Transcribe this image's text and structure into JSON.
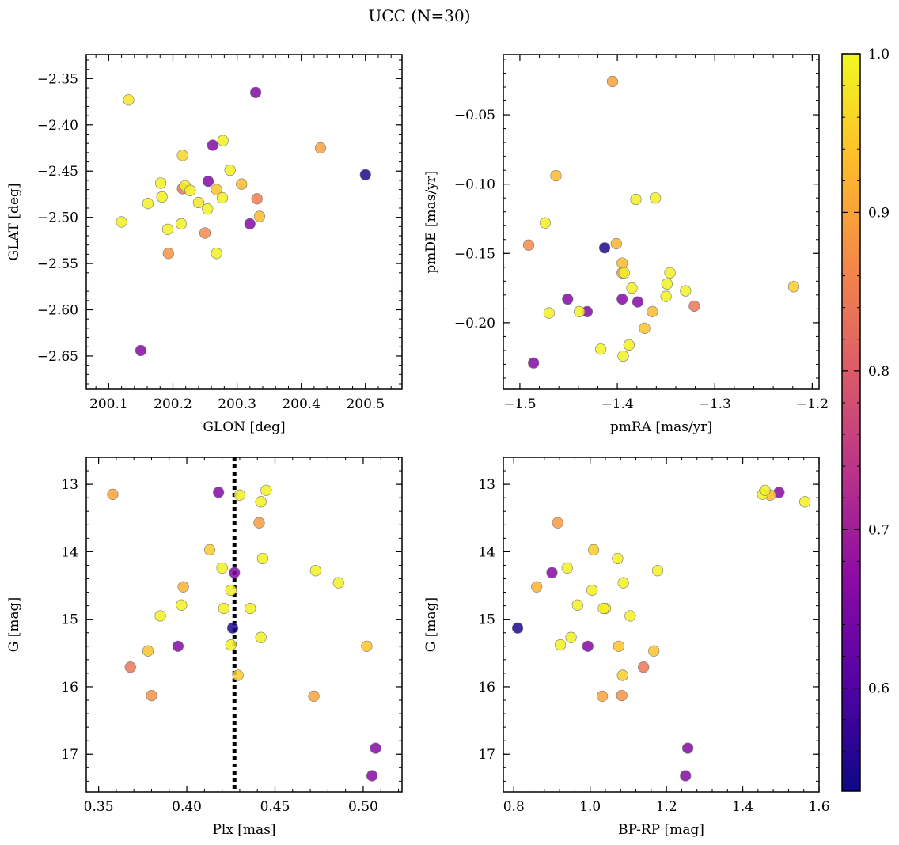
{
  "figure": {
    "title": "UCC (N=30)"
  },
  "chart_data": [
    {
      "type": "scatter",
      "panel": "top-left",
      "xlabel": "GLON [deg]",
      "ylabel": "GLAT [deg]",
      "xlim": [
        200.065,
        200.557
      ],
      "ylim": [
        -2.686,
        -2.324
      ],
      "y_inverted": false,
      "xticks": [
        200.1,
        200.2,
        200.3,
        200.4,
        200.5
      ],
      "xtick_labels": [
        "200.1",
        "200.2",
        "200.3",
        "200.4",
        "200.5"
      ],
      "yticks": [
        -2.65,
        -2.6,
        -2.55,
        -2.5,
        -2.45,
        -2.4,
        -2.35
      ],
      "ytick_labels": [
        "−2.65",
        "−2.60",
        "−2.55",
        "−2.50",
        "−2.45",
        "−2.40",
        "−2.35"
      ],
      "points": [
        {
          "x": 200.131,
          "y": -2.373,
          "c": 0.98
        },
        {
          "x": 200.329,
          "y": -2.365,
          "c": 0.66
        },
        {
          "x": 200.262,
          "y": -2.422,
          "c": 0.66
        },
        {
          "x": 200.278,
          "y": -2.417,
          "c": 0.99
        },
        {
          "x": 200.43,
          "y": -2.425,
          "c": 0.9
        },
        {
          "x": 200.215,
          "y": -2.433,
          "c": 0.96
        },
        {
          "x": 200.289,
          "y": -2.449,
          "c": 0.99
        },
        {
          "x": 200.5,
          "y": -2.454,
          "c": 0.55
        },
        {
          "x": 200.255,
          "y": -2.461,
          "c": 0.66
        },
        {
          "x": 200.307,
          "y": -2.464,
          "c": 0.93
        },
        {
          "x": 200.181,
          "y": -2.463,
          "c": 0.99
        },
        {
          "x": 200.215,
          "y": -2.469,
          "c": 0.84
        },
        {
          "x": 200.219,
          "y": -2.466,
          "c": 0.99
        },
        {
          "x": 200.227,
          "y": -2.471,
          "c": 0.99
        },
        {
          "x": 200.268,
          "y": -2.47,
          "c": 0.94
        },
        {
          "x": 200.331,
          "y": -2.48,
          "c": 0.85
        },
        {
          "x": 200.183,
          "y": -2.478,
          "c": 0.99
        },
        {
          "x": 200.277,
          "y": -2.479,
          "c": 0.99
        },
        {
          "x": 200.24,
          "y": -2.484,
          "c": 0.98
        },
        {
          "x": 200.161,
          "y": -2.485,
          "c": 0.99
        },
        {
          "x": 200.254,
          "y": -2.491,
          "c": 0.99
        },
        {
          "x": 200.335,
          "y": -2.499,
          "c": 0.93
        },
        {
          "x": 200.12,
          "y": -2.505,
          "c": 0.99
        },
        {
          "x": 200.213,
          "y": -2.507,
          "c": 0.99
        },
        {
          "x": 200.32,
          "y": -2.507,
          "c": 0.66
        },
        {
          "x": 200.192,
          "y": -2.513,
          "c": 0.99
        },
        {
          "x": 200.25,
          "y": -2.517,
          "c": 0.87
        },
        {
          "x": 200.193,
          "y": -2.539,
          "c": 0.88
        },
        {
          "x": 200.268,
          "y": -2.539,
          "c": 0.99
        },
        {
          "x": 200.15,
          "y": -2.644,
          "c": 0.66
        }
      ]
    },
    {
      "type": "scatter",
      "panel": "top-right",
      "xlabel": "pmRA [mas/yr]",
      "ylabel": "pmDE [mas/yr]",
      "xlim": [
        -1.517,
        -1.193
      ],
      "ylim": [
        -0.248,
        -0.0066
      ],
      "y_inverted": false,
      "xticks": [
        -1.5,
        -1.4,
        -1.3,
        -1.2
      ],
      "xtick_labels": [
        "−1.5",
        "−1.4",
        "−1.3",
        "−1.2"
      ],
      "yticks": [
        -0.2,
        -0.15,
        -0.1,
        -0.05
      ],
      "ytick_labels": [
        "−0.20",
        "−0.15",
        "−0.10",
        "−0.05"
      ],
      "points": [
        {
          "x": -1.405,
          "y": -0.026,
          "c": 0.9
        },
        {
          "x": -1.463,
          "y": -0.094,
          "c": 0.93
        },
        {
          "x": -1.361,
          "y": -0.11,
          "c": 0.99
        },
        {
          "x": -1.381,
          "y": -0.111,
          "c": 0.99
        },
        {
          "x": -1.474,
          "y": -0.128,
          "c": 0.99
        },
        {
          "x": -1.491,
          "y": -0.144,
          "c": 0.87
        },
        {
          "x": -1.401,
          "y": -0.143,
          "c": 0.92
        },
        {
          "x": -1.413,
          "y": -0.146,
          "c": 0.55
        },
        {
          "x": -1.395,
          "y": -0.157,
          "c": 0.93
        },
        {
          "x": -1.395,
          "y": -0.164,
          "c": 0.9
        },
        {
          "x": -1.393,
          "y": -0.164,
          "c": 0.99
        },
        {
          "x": -1.346,
          "y": -0.164,
          "c": 0.99
        },
        {
          "x": -1.349,
          "y": -0.172,
          "c": 0.99
        },
        {
          "x": -1.385,
          "y": -0.175,
          "c": 0.99
        },
        {
          "x": -1.33,
          "y": -0.177,
          "c": 0.99
        },
        {
          "x": -1.219,
          "y": -0.174,
          "c": 0.95
        },
        {
          "x": -1.35,
          "y": -0.181,
          "c": 0.99
        },
        {
          "x": -1.451,
          "y": -0.183,
          "c": 0.66
        },
        {
          "x": -1.395,
          "y": -0.183,
          "c": 0.66
        },
        {
          "x": -1.379,
          "y": -0.185,
          "c": 0.66
        },
        {
          "x": -1.321,
          "y": -0.188,
          "c": 0.84
        },
        {
          "x": -1.47,
          "y": -0.193,
          "c": 0.99
        },
        {
          "x": -1.439,
          "y": -0.192,
          "c": 0.99
        },
        {
          "x": -1.431,
          "y": -0.192,
          "c": 0.66
        },
        {
          "x": -1.364,
          "y": -0.192,
          "c": 0.93
        },
        {
          "x": -1.372,
          "y": -0.204,
          "c": 0.94
        },
        {
          "x": -1.388,
          "y": -0.216,
          "c": 0.99
        },
        {
          "x": -1.417,
          "y": -0.219,
          "c": 0.99
        },
        {
          "x": -1.394,
          "y": -0.224,
          "c": 0.99
        },
        {
          "x": -1.486,
          "y": -0.229,
          "c": 0.66
        }
      ]
    },
    {
      "type": "scatter",
      "panel": "bottom-left",
      "xlabel": "Plx [mas]",
      "ylabel": "G [mag]",
      "xlim": [
        0.343,
        0.522
      ],
      "ylim": [
        12.6,
        17.56
      ],
      "y_inverted": true,
      "vline": {
        "x": 0.427,
        "style": "dotted",
        "color": "#000000"
      },
      "xticks": [
        0.35,
        0.4,
        0.45,
        0.5
      ],
      "xtick_labels": [
        "0.35",
        "0.40",
        "0.45",
        "0.50"
      ],
      "yticks": [
        13,
        14,
        15,
        16,
        17
      ],
      "ytick_labels": [
        "13",
        "14",
        "15",
        "16",
        "17"
      ],
      "points": [
        {
          "x": 0.358,
          "y": 13.15,
          "c": 0.9
        },
        {
          "x": 0.418,
          "y": 13.12,
          "c": 0.66
        },
        {
          "x": 0.43,
          "y": 13.16,
          "c": 0.99
        },
        {
          "x": 0.445,
          "y": 13.09,
          "c": 0.99
        },
        {
          "x": 0.442,
          "y": 13.26,
          "c": 0.99
        },
        {
          "x": 0.441,
          "y": 13.57,
          "c": 0.89
        },
        {
          "x": 0.413,
          "y": 13.97,
          "c": 0.95
        },
        {
          "x": 0.443,
          "y": 14.1,
          "c": 0.99
        },
        {
          "x": 0.42,
          "y": 14.24,
          "c": 0.99
        },
        {
          "x": 0.427,
          "y": 14.31,
          "c": 0.66
        },
        {
          "x": 0.473,
          "y": 14.28,
          "c": 0.99
        },
        {
          "x": 0.486,
          "y": 14.46,
          "c": 0.99
        },
        {
          "x": 0.398,
          "y": 14.52,
          "c": 0.92
        },
        {
          "x": 0.425,
          "y": 14.57,
          "c": 0.99
        },
        {
          "x": 0.397,
          "y": 14.79,
          "c": 0.99
        },
        {
          "x": 0.421,
          "y": 14.84,
          "c": 0.99
        },
        {
          "x": 0.436,
          "y": 14.84,
          "c": 0.99
        },
        {
          "x": 0.385,
          "y": 14.95,
          "c": 0.99
        },
        {
          "x": 0.426,
          "y": 15.13,
          "c": 0.55
        },
        {
          "x": 0.442,
          "y": 15.27,
          "c": 0.99
        },
        {
          "x": 0.425,
          "y": 15.38,
          "c": 0.99
        },
        {
          "x": 0.395,
          "y": 15.4,
          "c": 0.66
        },
        {
          "x": 0.502,
          "y": 15.4,
          "c": 0.94
        },
        {
          "x": 0.378,
          "y": 15.47,
          "c": 0.94
        },
        {
          "x": 0.368,
          "y": 15.71,
          "c": 0.84
        },
        {
          "x": 0.429,
          "y": 15.83,
          "c": 0.95
        },
        {
          "x": 0.38,
          "y": 16.13,
          "c": 0.88
        },
        {
          "x": 0.472,
          "y": 16.14,
          "c": 0.9
        },
        {
          "x": 0.507,
          "y": 16.91,
          "c": 0.66
        },
        {
          "x": 0.505,
          "y": 17.32,
          "c": 0.66
        }
      ]
    },
    {
      "type": "scatter",
      "panel": "bottom-right",
      "xlabel": "BP-RP [mag]",
      "ylabel": "G [mag]",
      "xlim": [
        0.7725,
        1.6
      ],
      "ylim": [
        12.6,
        17.56
      ],
      "y_inverted": true,
      "xticks": [
        0.8,
        1.0,
        1.2,
        1.4,
        1.6
      ],
      "xtick_labels": [
        "0.8",
        "1.0",
        "1.2",
        "1.4",
        "1.6"
      ],
      "yticks": [
        13,
        14,
        15,
        16,
        17
      ],
      "ytick_labels": [
        "13",
        "14",
        "15",
        "16",
        "17"
      ],
      "points": [
        {
          "x": 1.452,
          "y": 13.15,
          "c": 0.99
        },
        {
          "x": 1.458,
          "y": 13.09,
          "c": 0.99
        },
        {
          "x": 1.472,
          "y": 13.16,
          "c": 0.93
        },
        {
          "x": 1.495,
          "y": 13.12,
          "c": 0.66
        },
        {
          "x": 1.563,
          "y": 13.26,
          "c": 0.99
        },
        {
          "x": 0.915,
          "y": 13.57,
          "c": 0.89
        },
        {
          "x": 1.009,
          "y": 13.97,
          "c": 0.95
        },
        {
          "x": 1.072,
          "y": 14.1,
          "c": 0.99
        },
        {
          "x": 0.94,
          "y": 14.24,
          "c": 0.99
        },
        {
          "x": 0.9,
          "y": 14.31,
          "c": 0.66
        },
        {
          "x": 1.177,
          "y": 14.28,
          "c": 0.99
        },
        {
          "x": 1.087,
          "y": 14.46,
          "c": 0.99
        },
        {
          "x": 0.86,
          "y": 14.52,
          "c": 0.92
        },
        {
          "x": 1.005,
          "y": 14.57,
          "c": 0.99
        },
        {
          "x": 0.967,
          "y": 14.79,
          "c": 0.99
        },
        {
          "x": 1.04,
          "y": 14.84,
          "c": 0.99
        },
        {
          "x": 1.035,
          "y": 14.84,
          "c": 0.99
        },
        {
          "x": 1.105,
          "y": 14.95,
          "c": 0.99
        },
        {
          "x": 0.81,
          "y": 15.13,
          "c": 0.55
        },
        {
          "x": 0.95,
          "y": 15.27,
          "c": 0.99
        },
        {
          "x": 0.922,
          "y": 15.38,
          "c": 0.99
        },
        {
          "x": 0.994,
          "y": 15.4,
          "c": 0.66
        },
        {
          "x": 1.075,
          "y": 15.4,
          "c": 0.94
        },
        {
          "x": 1.167,
          "y": 15.47,
          "c": 0.94
        },
        {
          "x": 1.14,
          "y": 15.71,
          "c": 0.84
        },
        {
          "x": 1.085,
          "y": 15.83,
          "c": 0.95
        },
        {
          "x": 1.083,
          "y": 16.13,
          "c": 0.88
        },
        {
          "x": 1.032,
          "y": 16.14,
          "c": 0.9
        },
        {
          "x": 1.256,
          "y": 16.91,
          "c": 0.66
        },
        {
          "x": 1.25,
          "y": 17.32,
          "c": 0.66
        }
      ]
    }
  ],
  "colorbar": {
    "min": 0.535,
    "max": 1.0,
    "ticks": [
      0.6,
      0.7,
      0.8,
      0.9,
      1.0
    ],
    "tick_labels": [
      "0.6",
      "0.7",
      "0.8",
      "0.9",
      "1.0"
    ],
    "colormap": [
      "#0d0887",
      "#5302a3",
      "#8b0aa5",
      "#b83289",
      "#db5c68",
      "#f48849",
      "#febd2a",
      "#f0f921"
    ]
  }
}
